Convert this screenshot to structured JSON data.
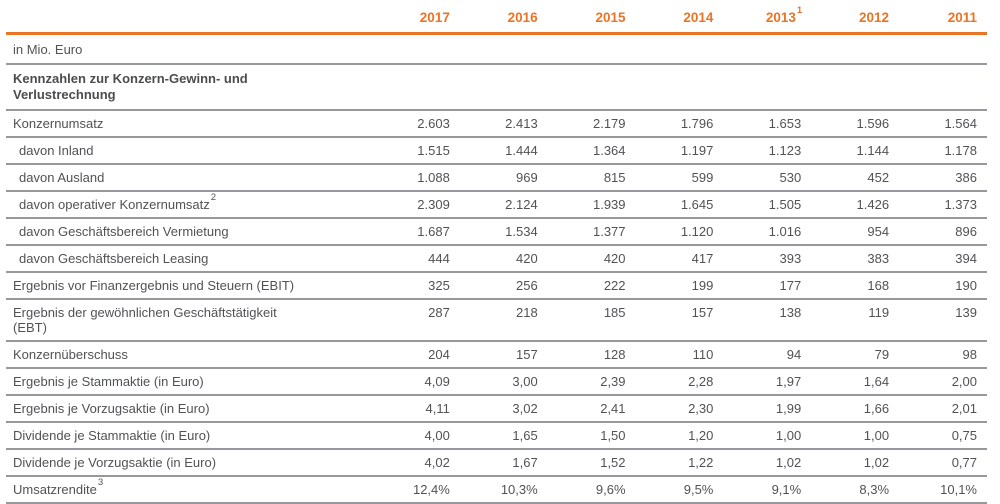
{
  "unit_label": "in Mio. Euro",
  "colors": {
    "accent_orange": "#EB7324",
    "text_gray": "#515254",
    "separator_gray": "#97989B"
  },
  "header": {
    "years": [
      {
        "label": "2017",
        "sup": ""
      },
      {
        "label": "2016",
        "sup": ""
      },
      {
        "label": "2015",
        "sup": ""
      },
      {
        "label": "2014",
        "sup": ""
      },
      {
        "label": "2013",
        "sup": "1"
      },
      {
        "label": "2012",
        "sup": ""
      },
      {
        "label": "2011",
        "sup": ""
      }
    ]
  },
  "section": {
    "title": "Kennzahlen zur Konzern-Gewinn- und\nVerlustrechnung"
  },
  "table": {
    "rows": [
      {
        "label": "Konzernumsatz",
        "sup": "",
        "indent": false,
        "values": [
          "2.603",
          "2.413",
          "2.179",
          "1.796",
          "1.653",
          "1.596",
          "1.564"
        ]
      },
      {
        "label": "davon Inland",
        "sup": "",
        "indent": true,
        "values": [
          "1.515",
          "1.444",
          "1.364",
          "1.197",
          "1.123",
          "1.144",
          "1.178"
        ]
      },
      {
        "label": "davon Ausland",
        "sup": "",
        "indent": true,
        "values": [
          "1.088",
          "969",
          "815",
          "599",
          "530",
          "452",
          "386"
        ]
      },
      {
        "label": "davon operativer Konzernumsatz",
        "sup": "2",
        "indent": true,
        "values": [
          "2.309",
          "2.124",
          "1.939",
          "1.645",
          "1.505",
          "1.426",
          "1.373"
        ]
      },
      {
        "label": "davon Geschäftsbereich Vermietung",
        "sup": "",
        "indent": true,
        "values": [
          "1.687",
          "1.534",
          "1.377",
          "1.120",
          "1.016",
          "954",
          "896"
        ]
      },
      {
        "label": "davon Geschäftsbereich Leasing",
        "sup": "",
        "indent": true,
        "values": [
          "444",
          "420",
          "420",
          "417",
          "393",
          "383",
          "394"
        ]
      },
      {
        "label": "Ergebnis vor Finanzergebnis und Steuern (EBIT)",
        "sup": "",
        "indent": false,
        "values": [
          "325",
          "256",
          "222",
          "199",
          "177",
          "168",
          "190"
        ]
      },
      {
        "label": "Ergebnis der gewöhnlichen Geschäftstätigkeit\n(EBT)",
        "sup": "",
        "indent": false,
        "values": [
          "287",
          "218",
          "185",
          "157",
          "138",
          "119",
          "139"
        ]
      },
      {
        "label": "Konzernüberschuss",
        "sup": "",
        "indent": false,
        "values": [
          "204",
          "157",
          "128",
          "110",
          "94",
          "79",
          "98"
        ]
      },
      {
        "label": "Ergebnis je Stammaktie (in Euro)",
        "sup": "",
        "indent": false,
        "values": [
          "4,09",
          "3,00",
          "2,39",
          "2,28",
          "1,97",
          "1,64",
          "2,00"
        ]
      },
      {
        "label": "Ergebnis je Vorzugsaktie (in Euro)",
        "sup": "",
        "indent": false,
        "values": [
          "4,11",
          "3,02",
          "2,41",
          "2,30",
          "1,99",
          "1,66",
          "2,01"
        ]
      },
      {
        "label": "Dividende je Stammaktie (in Euro)",
        "sup": "",
        "indent": false,
        "values": [
          "4,00",
          "1,65",
          "1,50",
          "1,20",
          "1,00",
          "1,00",
          "0,75"
        ]
      },
      {
        "label": "Dividende je Vorzugsaktie (in Euro)",
        "sup": "",
        "indent": false,
        "values": [
          "4,02",
          "1,67",
          "1,52",
          "1,22",
          "1,02",
          "1,02",
          "0,77"
        ]
      },
      {
        "label": "Umsatzrendite",
        "sup": "3",
        "indent": false,
        "values": [
          "12,4%",
          "10,3%",
          "9,6%",
          "9,5%",
          "9,1%",
          "8,3%",
          "10,1%"
        ]
      }
    ]
  }
}
